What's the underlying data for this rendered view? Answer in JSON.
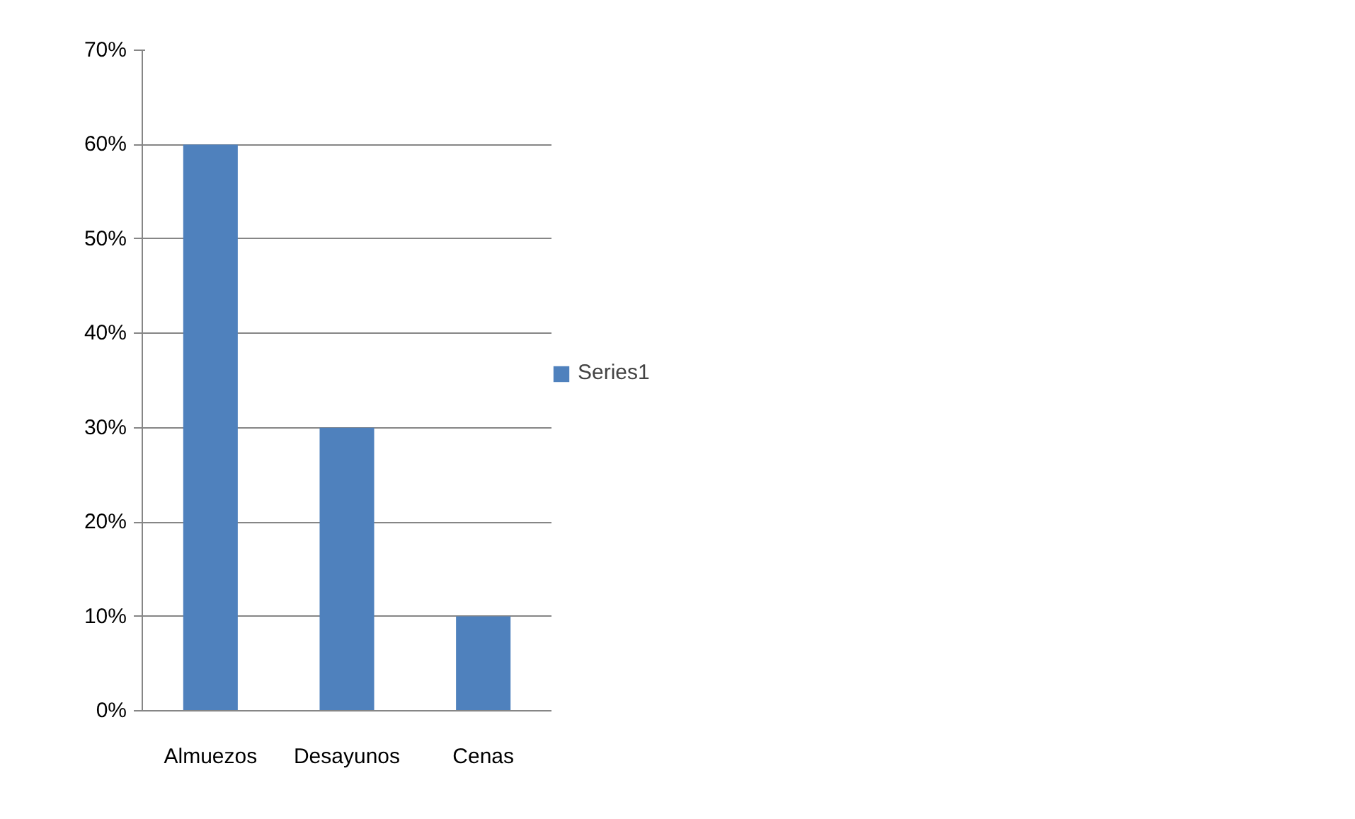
{
  "chart_data": {
    "type": "bar",
    "categories": [
      "Almuezos",
      "Desayunos",
      "Cenas"
    ],
    "series": [
      {
        "name": "Series1",
        "color": "#4f81bd",
        "values": [
          60,
          30,
          10
        ]
      }
    ],
    "ylim": [
      0,
      70
    ],
    "yticks": [
      {
        "value": 0,
        "label": "0%"
      },
      {
        "value": 10,
        "label": "10%"
      },
      {
        "value": 20,
        "label": "20%"
      },
      {
        "value": 30,
        "label": "30%"
      },
      {
        "value": 40,
        "label": "40%"
      },
      {
        "value": 50,
        "label": "50%"
      },
      {
        "value": 60,
        "label": "60%"
      },
      {
        "value": 70,
        "label": "70%"
      }
    ],
    "grid": "y",
    "legend": "right"
  }
}
